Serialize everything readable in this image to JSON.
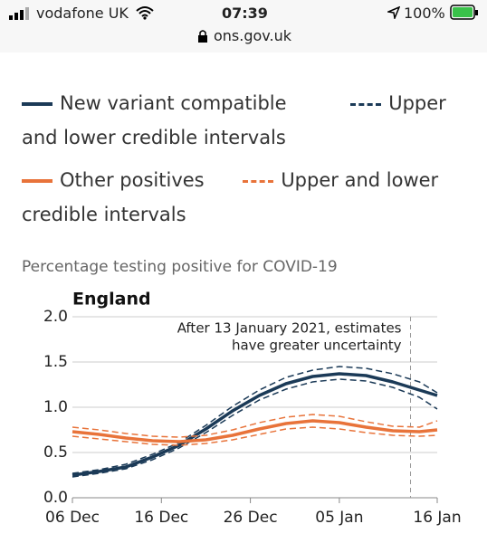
{
  "status_bar": {
    "carrier": "vodafone UK",
    "time": "07:39",
    "battery": "100%"
  },
  "url": "ons.gov.uk",
  "chart_data": {
    "type": "line",
    "subtitle": "Percentage testing positive for COVID-19",
    "title": "England",
    "annotation": [
      "After 13 January 2021, estimates",
      "have greater uncertainty"
    ],
    "annotation_x": 38,
    "x": [
      0,
      3,
      6,
      9,
      12,
      15,
      18,
      21,
      24,
      27,
      30,
      33,
      36,
      39,
      41
    ],
    "xlim": [
      0,
      41
    ],
    "xticks": [
      {
        "value": 0,
        "label": "06 Dec"
      },
      {
        "value": 10,
        "label": "16 Dec"
      },
      {
        "value": 20,
        "label": "26 Dec"
      },
      {
        "value": 30,
        "label": "05 Jan"
      },
      {
        "value": 41,
        "label": "16 Jan"
      }
    ],
    "ylim": [
      0,
      2
    ],
    "yticks": [
      {
        "value": 0,
        "label": "0.0"
      },
      {
        "value": 0.5,
        "label": "0.5"
      },
      {
        "value": 1,
        "label": "1.0"
      },
      {
        "value": 1.5,
        "label": "1.5"
      },
      {
        "value": 2,
        "label": "2.0"
      }
    ],
    "grid": true,
    "series": [
      {
        "name": "New variant compatible",
        "color": "#1b3a57",
        "values": [
          0.25,
          0.29,
          0.34,
          0.45,
          0.58,
          0.76,
          0.96,
          1.13,
          1.26,
          1.34,
          1.37,
          1.35,
          1.28,
          1.19,
          1.13
        ],
        "interval": {
          "name": "Upper and lower credible intervals",
          "upper": [
            0.27,
            0.31,
            0.37,
            0.48,
            0.61,
            0.8,
            1.01,
            1.19,
            1.33,
            1.41,
            1.45,
            1.43,
            1.37,
            1.28,
            1.16
          ],
          "lower": [
            0.23,
            0.27,
            0.32,
            0.42,
            0.55,
            0.72,
            0.91,
            1.08,
            1.2,
            1.28,
            1.31,
            1.29,
            1.22,
            1.11,
            0.98
          ]
        }
      },
      {
        "name": "Other positives",
        "color": "#e8733a",
        "values": [
          0.73,
          0.7,
          0.66,
          0.63,
          0.62,
          0.64,
          0.69,
          0.76,
          0.82,
          0.85,
          0.83,
          0.78,
          0.74,
          0.73,
          0.75
        ],
        "interval": {
          "name": "Upper and lower credible intervals",
          "upper": [
            0.78,
            0.75,
            0.71,
            0.68,
            0.67,
            0.69,
            0.75,
            0.83,
            0.89,
            0.92,
            0.9,
            0.84,
            0.79,
            0.78,
            0.85
          ],
          "lower": [
            0.68,
            0.65,
            0.62,
            0.59,
            0.58,
            0.6,
            0.64,
            0.7,
            0.76,
            0.78,
            0.76,
            0.72,
            0.69,
            0.68,
            0.69
          ]
        }
      }
    ]
  }
}
